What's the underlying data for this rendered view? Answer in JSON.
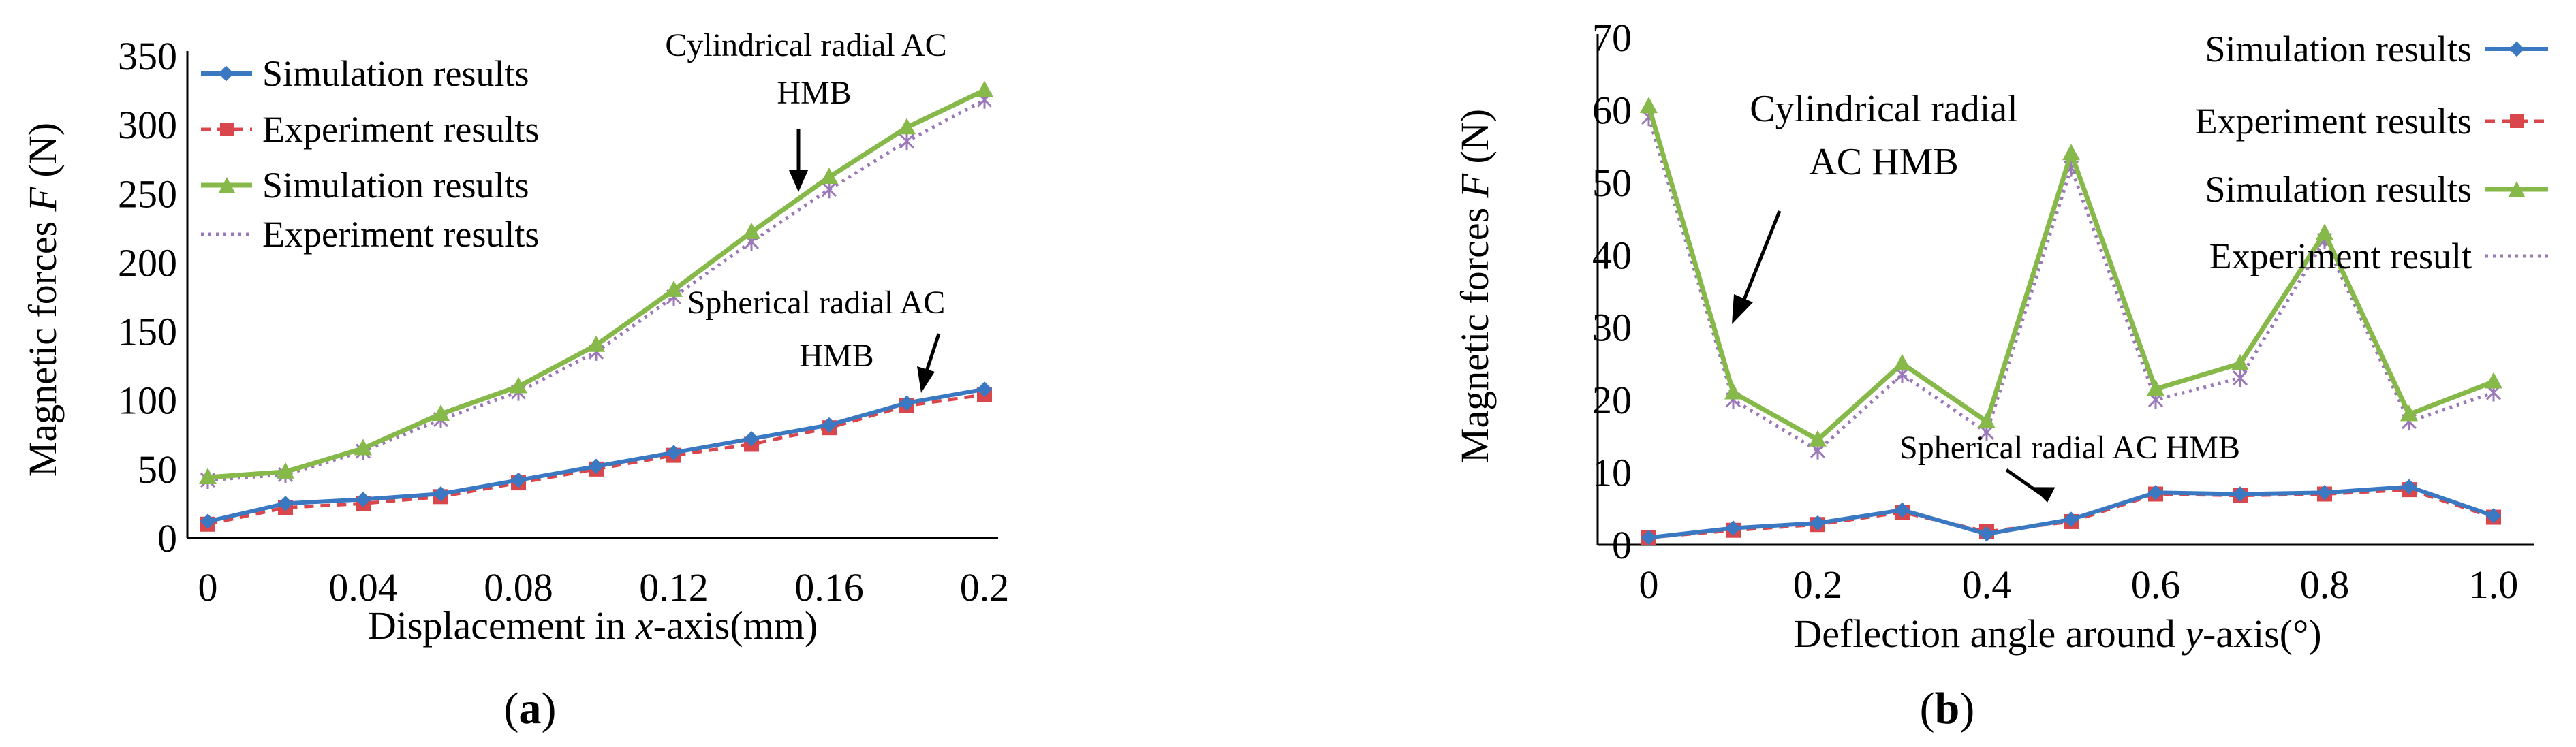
{
  "colors": {
    "sim_small": "#3a78c2",
    "exp_small": "#d9474c",
    "sim_large": "#86b94a",
    "exp_large": "#9b78b8",
    "axis": "#000000"
  },
  "chart_data": [
    {
      "type": "line",
      "panel_label": "(a)",
      "panel_letter": "a",
      "xlabel_pre": "Displacement in ",
      "xlabel_var": "x",
      "xlabel_post": "-axis(mm)",
      "ylabel_pre": "Magnetic forces ",
      "ylabel_var": "F",
      "ylabel_post": " (N)",
      "xlim": [
        0,
        0.2
      ],
      "ylim": [
        0,
        350
      ],
      "x_ticks": [
        0,
        0.04,
        0.08,
        0.12,
        0.16,
        0.2
      ],
      "x_tick_labels": [
        "0",
        "0.04",
        "0.08",
        "0.12",
        "0.16",
        "0.2"
      ],
      "y_ticks": [
        0,
        50,
        100,
        150,
        200,
        250,
        300,
        350
      ],
      "y_tick_labels": [
        "0",
        "50",
        "100",
        "150",
        "200",
        "250",
        "300",
        "350"
      ],
      "x": [
        0,
        0.02,
        0.04,
        0.06,
        0.08,
        0.1,
        0.12,
        0.14,
        0.16,
        0.18,
        0.2
      ],
      "series": [
        {
          "name": "Simulation results",
          "values": [
            12,
            25,
            28,
            32,
            42,
            52,
            62,
            72,
            82,
            98,
            108
          ]
        },
        {
          "name": "Experiment results",
          "values": [
            10,
            22,
            25,
            30,
            40,
            50,
            60,
            68,
            80,
            96,
            104
          ]
        },
        {
          "name": "Simulation results",
          "values": [
            44,
            48,
            65,
            90,
            110,
            140,
            180,
            222,
            262,
            298,
            325
          ]
        },
        {
          "name": "Experiment results",
          "values": [
            42,
            46,
            63,
            86,
            106,
            135,
            175,
            215,
            253,
            288,
            318
          ]
        }
      ],
      "annotations": {
        "large_line1": "Cylindrical radial AC",
        "large_line2": "HMB",
        "small_line1": "Spherical radial AC",
        "small_line2": "HMB"
      }
    },
    {
      "type": "line",
      "panel_label": "(b)",
      "panel_letter": "b",
      "xlabel_pre": "Deflection angle around ",
      "xlabel_var": "y",
      "xlabel_post": "-axis(°)",
      "ylabel_pre": "Magnetic forces ",
      "ylabel_var": "F",
      "ylabel_post": " (N)",
      "xlim": [
        0,
        1.0
      ],
      "ylim": [
        0,
        70
      ],
      "x_ticks": [
        0,
        0.2,
        0.4,
        0.6,
        0.8,
        1.0
      ],
      "x_tick_labels": [
        "0",
        "0.2",
        "0.4",
        "0.6",
        "0.8",
        "1.0"
      ],
      "y_ticks": [
        0,
        10,
        20,
        30,
        40,
        50,
        60,
        70
      ],
      "y_tick_labels": [
        "0",
        "10",
        "20",
        "30",
        "40",
        "50",
        "60",
        "70"
      ],
      "x": [
        0,
        0.1,
        0.2,
        0.3,
        0.4,
        0.5,
        0.6,
        0.7,
        0.8,
        0.9,
        1.0
      ],
      "series": [
        {
          "name": "Simulation results",
          "values": [
            1,
            2.3,
            3,
            4.8,
            1.5,
            3.5,
            7.2,
            7,
            7.2,
            8,
            4
          ]
        },
        {
          "name": "Experiment results",
          "values": [
            1,
            2,
            2.8,
            4.5,
            1.8,
            3.2,
            7,
            6.8,
            7,
            7.6,
            3.8
          ]
        },
        {
          "name": "Simulation results",
          "values": [
            60.5,
            21,
            14.5,
            25,
            17,
            54,
            21.5,
            25,
            43,
            18,
            22.5
          ]
        },
        {
          "name": "Experiment result",
          "values": [
            59,
            20,
            13,
            23.5,
            15.5,
            52,
            20,
            23,
            42,
            17,
            21
          ]
        }
      ],
      "annotations": {
        "large_line1": "Cylindrical radial",
        "large_line2": "AC HMB",
        "small_line1": "Spherical radial AC HMB"
      }
    }
  ]
}
